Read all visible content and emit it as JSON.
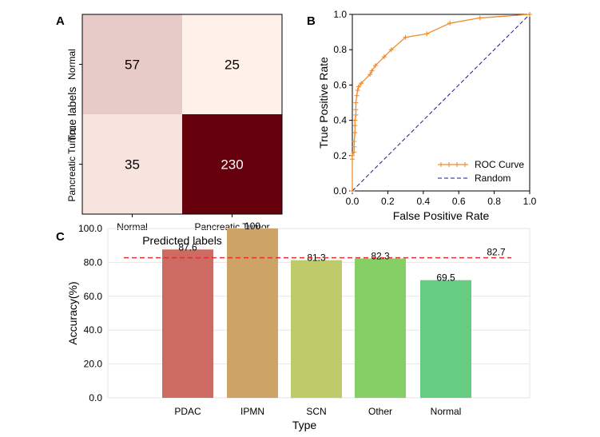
{
  "chart_data": [
    {
      "panel": "A",
      "type": "heatmap",
      "title": "",
      "xlabel": "Predicted labels",
      "ylabel": "True labels",
      "x_categories": [
        "Normal",
        "Pancreatic Tumor"
      ],
      "y_categories": [
        "Normal",
        "Pancreatic Tumor"
      ],
      "values": [
        [
          57,
          25
        ],
        [
          35,
          230
        ]
      ],
      "colormap": "Reds"
    },
    {
      "panel": "B",
      "type": "line",
      "xlabel": "False Positive Rate",
      "ylabel": "True Positive Rate",
      "xlim": [
        0.0,
        1.0
      ],
      "ylim": [
        0.0,
        1.0
      ],
      "xticks": [
        "0.0",
        "0.2",
        "0.4",
        "0.6",
        "0.8",
        "1.0"
      ],
      "yticks": [
        "0.0",
        "0.2",
        "0.4",
        "0.6",
        "0.8",
        "1.0"
      ],
      "legend_position": "bottom-right",
      "series": [
        {
          "name": "ROC Curve",
          "color": "#f28b2e",
          "style": "solid-with-plus-markers",
          "x": [
            0.0,
            0.0,
            0.0,
            0.01,
            0.01,
            0.01,
            0.015,
            0.015,
            0.015,
            0.02,
            0.02,
            0.02,
            0.025,
            0.03,
            0.035,
            0.05,
            0.1,
            0.11,
            0.13,
            0.18,
            0.22,
            0.3,
            0.42,
            0.55,
            0.72,
            1.0
          ],
          "y": [
            0.0,
            0.18,
            0.2,
            0.22,
            0.25,
            0.28,
            0.33,
            0.37,
            0.4,
            0.43,
            0.46,
            0.5,
            0.54,
            0.57,
            0.59,
            0.61,
            0.66,
            0.68,
            0.71,
            0.76,
            0.8,
            0.87,
            0.89,
            0.95,
            0.98,
            1.0
          ]
        },
        {
          "name": "Random",
          "color": "#1a1a8c",
          "style": "dashed",
          "x": [
            0.0,
            1.0
          ],
          "y": [
            0.0,
            1.0
          ]
        }
      ]
    },
    {
      "panel": "C",
      "type": "bar",
      "xlabel": "Type",
      "ylabel": "Accuracy(%)",
      "ylim": [
        0,
        100
      ],
      "yticks": [
        "0.0",
        "20.0",
        "40.0",
        "60.0",
        "80.0",
        "100.0"
      ],
      "categories": [
        "PDAC",
        "IPMN",
        "SCN",
        "Other",
        "Normal"
      ],
      "values": [
        87.6,
        100,
        81.3,
        82.3,
        69.5
      ],
      "value_labels": [
        "87.6",
        "100",
        "81.3",
        "82.3",
        "69.5"
      ],
      "colors": [
        "#cd6a62",
        "#cda366",
        "#bfcb6a",
        "#86cf67",
        "#66cc82"
      ],
      "reference_line": {
        "value": 82.7,
        "label": "82.7",
        "color": "#e03030"
      },
      "grid": true
    }
  ],
  "panels": {
    "a": "A",
    "b": "B",
    "c": "C"
  }
}
